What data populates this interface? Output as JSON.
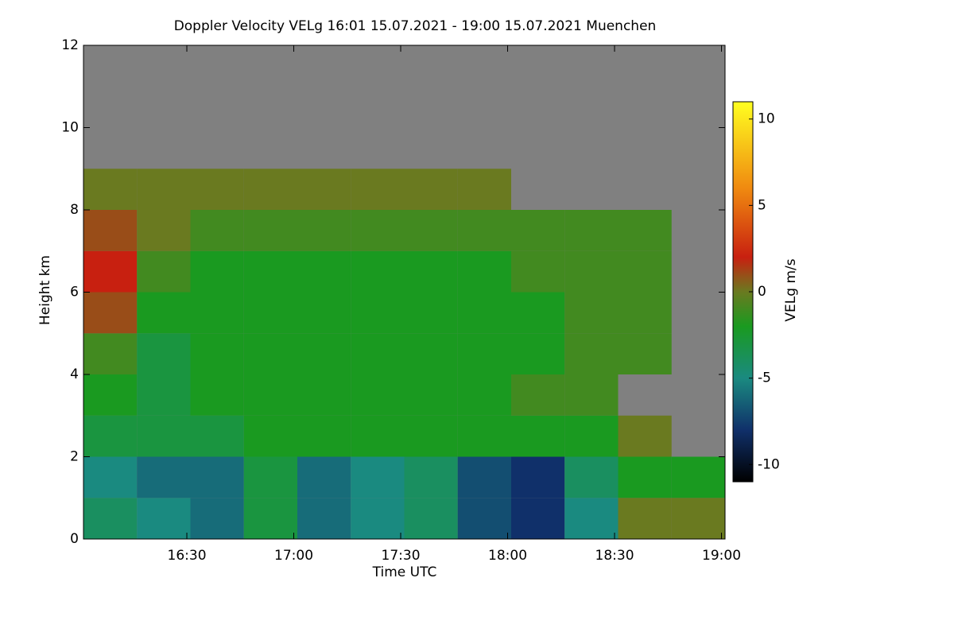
{
  "chart_data": {
    "type": "heatmap",
    "title": "Doppler Velocity VELg   16:01 15.07.2021 - 19:00 15.07.2021 Muenchen",
    "x_label": "Time UTC",
    "y_label": "Height km",
    "colorbar_label": "VELg m/s",
    "x": [
      968.5,
      983.5,
      998.5,
      1013.5,
      1028.5,
      1043.5,
      1058.5,
      1073.5,
      1088.5,
      1103.5,
      1118.5,
      1133.5
    ],
    "y": [
      0.5,
      1.5,
      2.5,
      3.5,
      4.5,
      5.5,
      6.5,
      7.5,
      8.5,
      9.5,
      10.5,
      11.5
    ],
    "values": [
      [
        -4,
        -5,
        -6,
        -3,
        -6,
        -5,
        -4,
        -7,
        -8,
        -5,
        0,
        0
      ],
      [
        -5,
        -6,
        -6,
        -3,
        -6,
        -5,
        -4,
        -7,
        -8,
        -4,
        -2,
        -2
      ],
      [
        -3,
        -3,
        -3,
        -2,
        -2,
        -2,
        -2,
        -2,
        -2,
        -2,
        0,
        null
      ],
      [
        -2,
        -3,
        -2,
        -2,
        -2,
        -2,
        -2,
        -2,
        -1,
        -1,
        null,
        null
      ],
      [
        -1,
        -3,
        -2,
        -2,
        -2,
        -2,
        -2,
        -2,
        -2,
        -1,
        -1,
        null
      ],
      [
        1,
        -2,
        -2,
        -2,
        -2,
        -2,
        -2,
        -2,
        -2,
        -1,
        -1,
        null
      ],
      [
        2,
        -1,
        -2,
        -2,
        -2,
        -2,
        -2,
        -2,
        -1,
        -1,
        -1,
        null
      ],
      [
        1,
        0,
        -1,
        -1,
        -1,
        -1,
        -1,
        -1,
        -1,
        -1,
        -1,
        null
      ],
      [
        0,
        0,
        0,
        0,
        0,
        0,
        0,
        0,
        null,
        null,
        null,
        null
      ],
      [
        null,
        null,
        null,
        null,
        null,
        null,
        null,
        null,
        null,
        null,
        null,
        null
      ],
      [
        null,
        null,
        null,
        null,
        null,
        null,
        null,
        null,
        null,
        null,
        null,
        null
      ],
      [
        null,
        null,
        null,
        null,
        null,
        null,
        null,
        null,
        null,
        null,
        null,
        null
      ]
    ],
    "xlim": [
      961,
      1141
    ],
    "xticks": [
      {
        "value": 990,
        "label": "16:30"
      },
      {
        "value": 1020,
        "label": "17:00"
      },
      {
        "value": 1050,
        "label": "17:30"
      },
      {
        "value": 1080,
        "label": "18:00"
      },
      {
        "value": 1110,
        "label": "18:30"
      },
      {
        "value": 1140,
        "label": "19:00"
      }
    ],
    "ylim": [
      0,
      12
    ],
    "yticks": [
      0,
      2,
      4,
      6,
      8,
      10,
      12
    ],
    "zlim": [
      -11,
      11
    ],
    "zticks": [
      -10,
      -5,
      0,
      5,
      10
    ],
    "missing_color": "#808080",
    "colorscale": [
      [
        -11,
        "#000000"
      ],
      [
        -8,
        "#10306a"
      ],
      [
        -5,
        "#1a8a80"
      ],
      [
        -2,
        "#1a9a20"
      ],
      [
        0,
        "#6a7a20"
      ],
      [
        2,
        "#c82010"
      ],
      [
        6,
        "#f08a10"
      ],
      [
        11,
        "#ffff20"
      ]
    ]
  }
}
